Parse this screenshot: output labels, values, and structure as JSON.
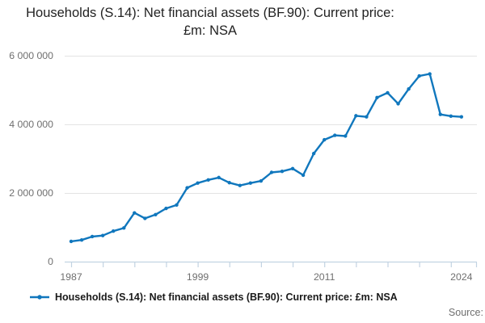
{
  "header": {
    "title": "Households (S.14): Net financial assets (BF.90): Current price: £m: NSA"
  },
  "legend": {
    "label": "Households (S.14): Net financial assets (BF.90): Current price: £m: NSA",
    "marker": "line-with-dot-marker",
    "color": "#1077bd"
  },
  "footer": {
    "source_label": "Source:"
  },
  "chart_data": {
    "type": "line",
    "title": "Households (S.14): Net financial assets (BF.90): Current price: £m: NSA",
    "xlabel": "",
    "ylabel": "",
    "ylim": [
      0,
      6000000
    ],
    "y_ticks": [
      0,
      2000000,
      4000000,
      6000000
    ],
    "y_tick_labels": [
      "0",
      "2 000 000",
      "4 000 000",
      "6 000 000"
    ],
    "x_tick_labels": [
      "1987",
      "1999",
      "2011",
      "2024"
    ],
    "minor_tick_interval_years": 3,
    "grid": "horizontal",
    "legend_position": "bottom-left",
    "line_color": "#1077bd",
    "axis_color": "#c2d3e2",
    "grid_color": "#e3e3e3",
    "series": [
      {
        "name": "Households (S.14): Net financial assets (BF.90): Current price: £m: NSA",
        "x": [
          1987,
          1988,
          1989,
          1990,
          1991,
          1992,
          1993,
          1994,
          1995,
          1996,
          1997,
          1998,
          1999,
          2000,
          2001,
          2002,
          2003,
          2004,
          2005,
          2006,
          2007,
          2008,
          2009,
          2010,
          2011,
          2012,
          2013,
          2014,
          2015,
          2016,
          2017,
          2018,
          2019,
          2020,
          2021,
          2022,
          2023,
          2024
        ],
        "values": [
          590000,
          630000,
          730000,
          760000,
          890000,
          980000,
          1420000,
          1260000,
          1370000,
          1550000,
          1650000,
          2150000,
          2290000,
          2380000,
          2450000,
          2300000,
          2220000,
          2290000,
          2350000,
          2600000,
          2630000,
          2710000,
          2520000,
          3150000,
          3550000,
          3680000,
          3660000,
          4250000,
          4220000,
          4780000,
          4920000,
          4600000,
          5030000,
          5410000,
          5470000,
          4290000,
          4240000,
          4220000
        ]
      }
    ]
  }
}
